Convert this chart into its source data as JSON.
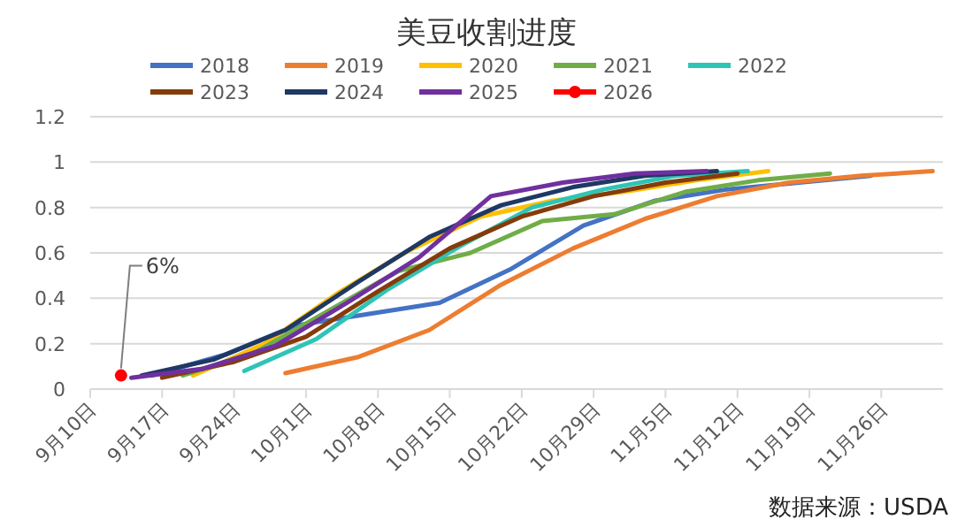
{
  "chart_data": {
    "type": "line",
    "title": "美豆收割进度",
    "xlim": [
      "--09-10",
      "--12-02"
    ],
    "xticks": [
      {
        "value": "--09-10",
        "label": "9月10日"
      },
      {
        "value": "--09-17",
        "label": "9月17日"
      },
      {
        "value": "--09-24",
        "label": "9月24日"
      },
      {
        "value": "--10-01",
        "label": "10月1日"
      },
      {
        "value": "--10-08",
        "label": "10月8日"
      },
      {
        "value": "--10-15",
        "label": "10月15日"
      },
      {
        "value": "--10-22",
        "label": "10月22日"
      },
      {
        "value": "--10-29",
        "label": "10月29日"
      },
      {
        "value": "--11-05",
        "label": "11月5日"
      },
      {
        "value": "--11-12",
        "label": "11月12日"
      },
      {
        "value": "--11-19",
        "label": "11月19日"
      },
      {
        "value": "--11-26",
        "label": "11月26日"
      }
    ],
    "ylim": [
      0,
      1.2
    ],
    "yticks": [
      0,
      {
        "value": 0.2,
        "label": "0.2"
      },
      {
        "value": 0.4,
        "label": "0.4"
      },
      {
        "value": 0.6,
        "label": "0.6"
      },
      {
        "value": 0.8,
        "label": "0.8"
      },
      1,
      {
        "value": 1.2,
        "label": "1.2"
      }
    ],
    "grid": "y",
    "legend": "top",
    "series": [
      {
        "name": "2018",
        "color": "#4472c4",
        "x": [
          "--09-16",
          "--09-23",
          "--09-30",
          "--10-07",
          "--10-14",
          "--10-21",
          "--10-28",
          "--11-04",
          "--11-11",
          "--11-18",
          "--11-25"
        ],
        "values": [
          0.06,
          0.15,
          0.28,
          0.33,
          0.38,
          0.53,
          0.72,
          0.83,
          0.88,
          0.91,
          0.94
        ]
      },
      {
        "name": "2019",
        "color": "#ed7d31",
        "x": [
          "--09-29",
          "--10-06",
          "--10-13",
          "--10-20",
          "--10-27",
          "--11-03",
          "--11-10",
          "--11-17",
          "--11-24",
          "--12-01"
        ],
        "values": [
          0.07,
          0.14,
          0.26,
          0.46,
          0.62,
          0.75,
          0.85,
          0.91,
          0.94,
          0.96
        ]
      },
      {
        "name": "2020",
        "color": "#ffc000",
        "x": [
          "--09-20",
          "--09-27",
          "--10-04",
          "--10-11",
          "--10-18",
          "--10-25",
          "--11-01",
          "--11-08",
          "--11-15"
        ],
        "values": [
          0.06,
          0.2,
          0.42,
          0.61,
          0.76,
          0.83,
          0.87,
          0.92,
          0.96
        ]
      },
      {
        "name": "2021",
        "color": "#70ad47",
        "x": [
          "--09-19",
          "--09-26",
          "--10-03",
          "--10-10",
          "--10-17",
          "--10-24",
          "--10-31",
          "--11-07",
          "--11-14",
          "--11-21"
        ],
        "values": [
          0.06,
          0.16,
          0.34,
          0.52,
          0.6,
          0.74,
          0.77,
          0.87,
          0.92,
          0.95
        ]
      },
      {
        "name": "2022",
        "color": "#2ec4b6",
        "x": [
          "--09-25",
          "--10-02",
          "--10-09",
          "--10-16",
          "--10-23",
          "--10-30",
          "--11-06",
          "--11-13"
        ],
        "values": [
          0.08,
          0.22,
          0.44,
          0.63,
          0.8,
          0.88,
          0.94,
          0.96
        ]
      },
      {
        "name": "2023",
        "color": "#843c0c",
        "x": [
          "--09-17",
          "--09-24",
          "--10-01",
          "--10-08",
          "--10-15",
          "--10-22",
          "--10-29",
          "--11-05",
          "--11-12"
        ],
        "values": [
          0.05,
          0.12,
          0.23,
          0.43,
          0.62,
          0.76,
          0.85,
          0.91,
          0.95
        ]
      },
      {
        "name": "2024",
        "color": "#1f3864",
        "x": [
          "--09-15",
          "--09-22",
          "--09-29",
          "--10-06",
          "--10-13",
          "--10-20",
          "--10-27",
          "--11-03",
          "--11-10"
        ],
        "values": [
          0.06,
          0.13,
          0.26,
          0.47,
          0.67,
          0.81,
          0.89,
          0.94,
          0.96
        ]
      },
      {
        "name": "2025",
        "color": "#7030a0",
        "x": [
          "--09-14",
          "--09-21",
          "--09-28",
          "--10-05",
          "--10-12",
          "--10-19",
          "--10-26",
          "--11-02",
          "--11-09"
        ],
        "values": [
          0.05,
          0.09,
          0.19,
          0.38,
          0.58,
          0.85,
          0.91,
          0.95,
          0.96
        ]
      },
      {
        "name": "2026",
        "color": "#ff0000",
        "marker": "circle",
        "x": [
          "--09-13"
        ],
        "values": [
          0.06
        ]
      }
    ],
    "annotations": [
      {
        "text": "6%",
        "x": "--09-13",
        "y": 0.06
      },
      "数据来源：USDA"
    ]
  }
}
